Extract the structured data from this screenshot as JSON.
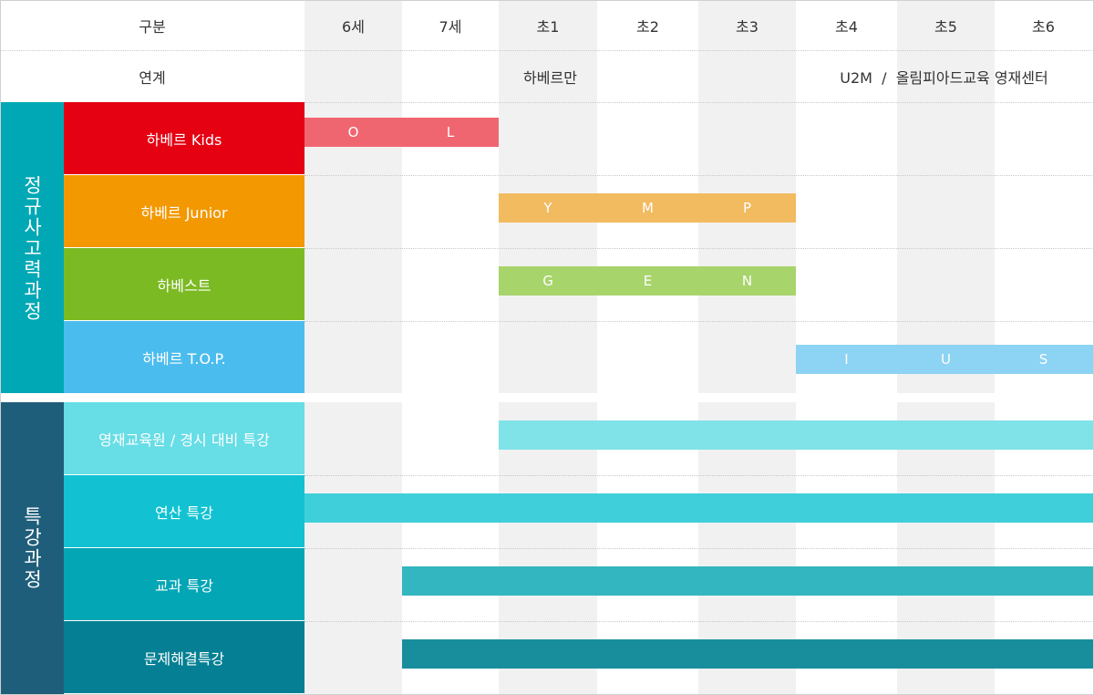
{
  "header": {
    "category_label": "구분",
    "link_label": "연계",
    "columns": [
      "6세",
      "7세",
      "초1",
      "초2",
      "초3",
      "초4",
      "초5",
      "초6"
    ],
    "link_left": "하베르만",
    "link_right": "U2M  /  올림피아드교육 영재센터"
  },
  "groups": [
    {
      "label": "정규사고력과정",
      "color": "#00a8b5"
    },
    {
      "label": "특강과정",
      "color": "#1f5e7a"
    }
  ],
  "chart_data": {
    "type": "table",
    "programs": [
      {
        "name": "하베르 Kids",
        "group": 0,
        "color": "#e50012",
        "bar_color": "#f06670",
        "start": 0,
        "end": 2,
        "segments": [
          "O",
          "L"
        ]
      },
      {
        "name": "하베르  Junior",
        "group": 0,
        "color": "#f39800",
        "bar_color": "#f2bb60",
        "start": 2,
        "end": 5,
        "segments": [
          "Y",
          "M",
          "P"
        ]
      },
      {
        "name": "하베스트",
        "group": 0,
        "color": "#7cba23",
        "bar_color": "#a8d46c",
        "start": 2,
        "end": 5,
        "segments": [
          "G",
          "E",
          "N"
        ]
      },
      {
        "name": "하베르 T.O.P.",
        "group": 0,
        "color": "#4bbcee",
        "bar_color": "#8dd3f3",
        "start": 5,
        "end": 8,
        "segments": [
          "I",
          "U",
          "S"
        ]
      },
      {
        "name": "영재교육원 / 경시 대비 특강",
        "group": 1,
        "color": "#67dde6",
        "bar_color": "#7fe3e8",
        "start": 2,
        "end": 8,
        "segments": []
      },
      {
        "name": "연산 특강",
        "group": 1,
        "color": "#12c2d2",
        "bar_color": "#3fcfda",
        "start": 0,
        "end": 8,
        "segments": []
      },
      {
        "name": "교과 특강",
        "group": 1,
        "color": "#03a6b5",
        "bar_color": "#33b6bf",
        "start": 1,
        "end": 8,
        "segments": []
      },
      {
        "name": "문제해결특강",
        "group": 1,
        "color": "#047f93",
        "bar_color": "#188e9d",
        "start": 1,
        "end": 8,
        "segments": []
      }
    ]
  }
}
